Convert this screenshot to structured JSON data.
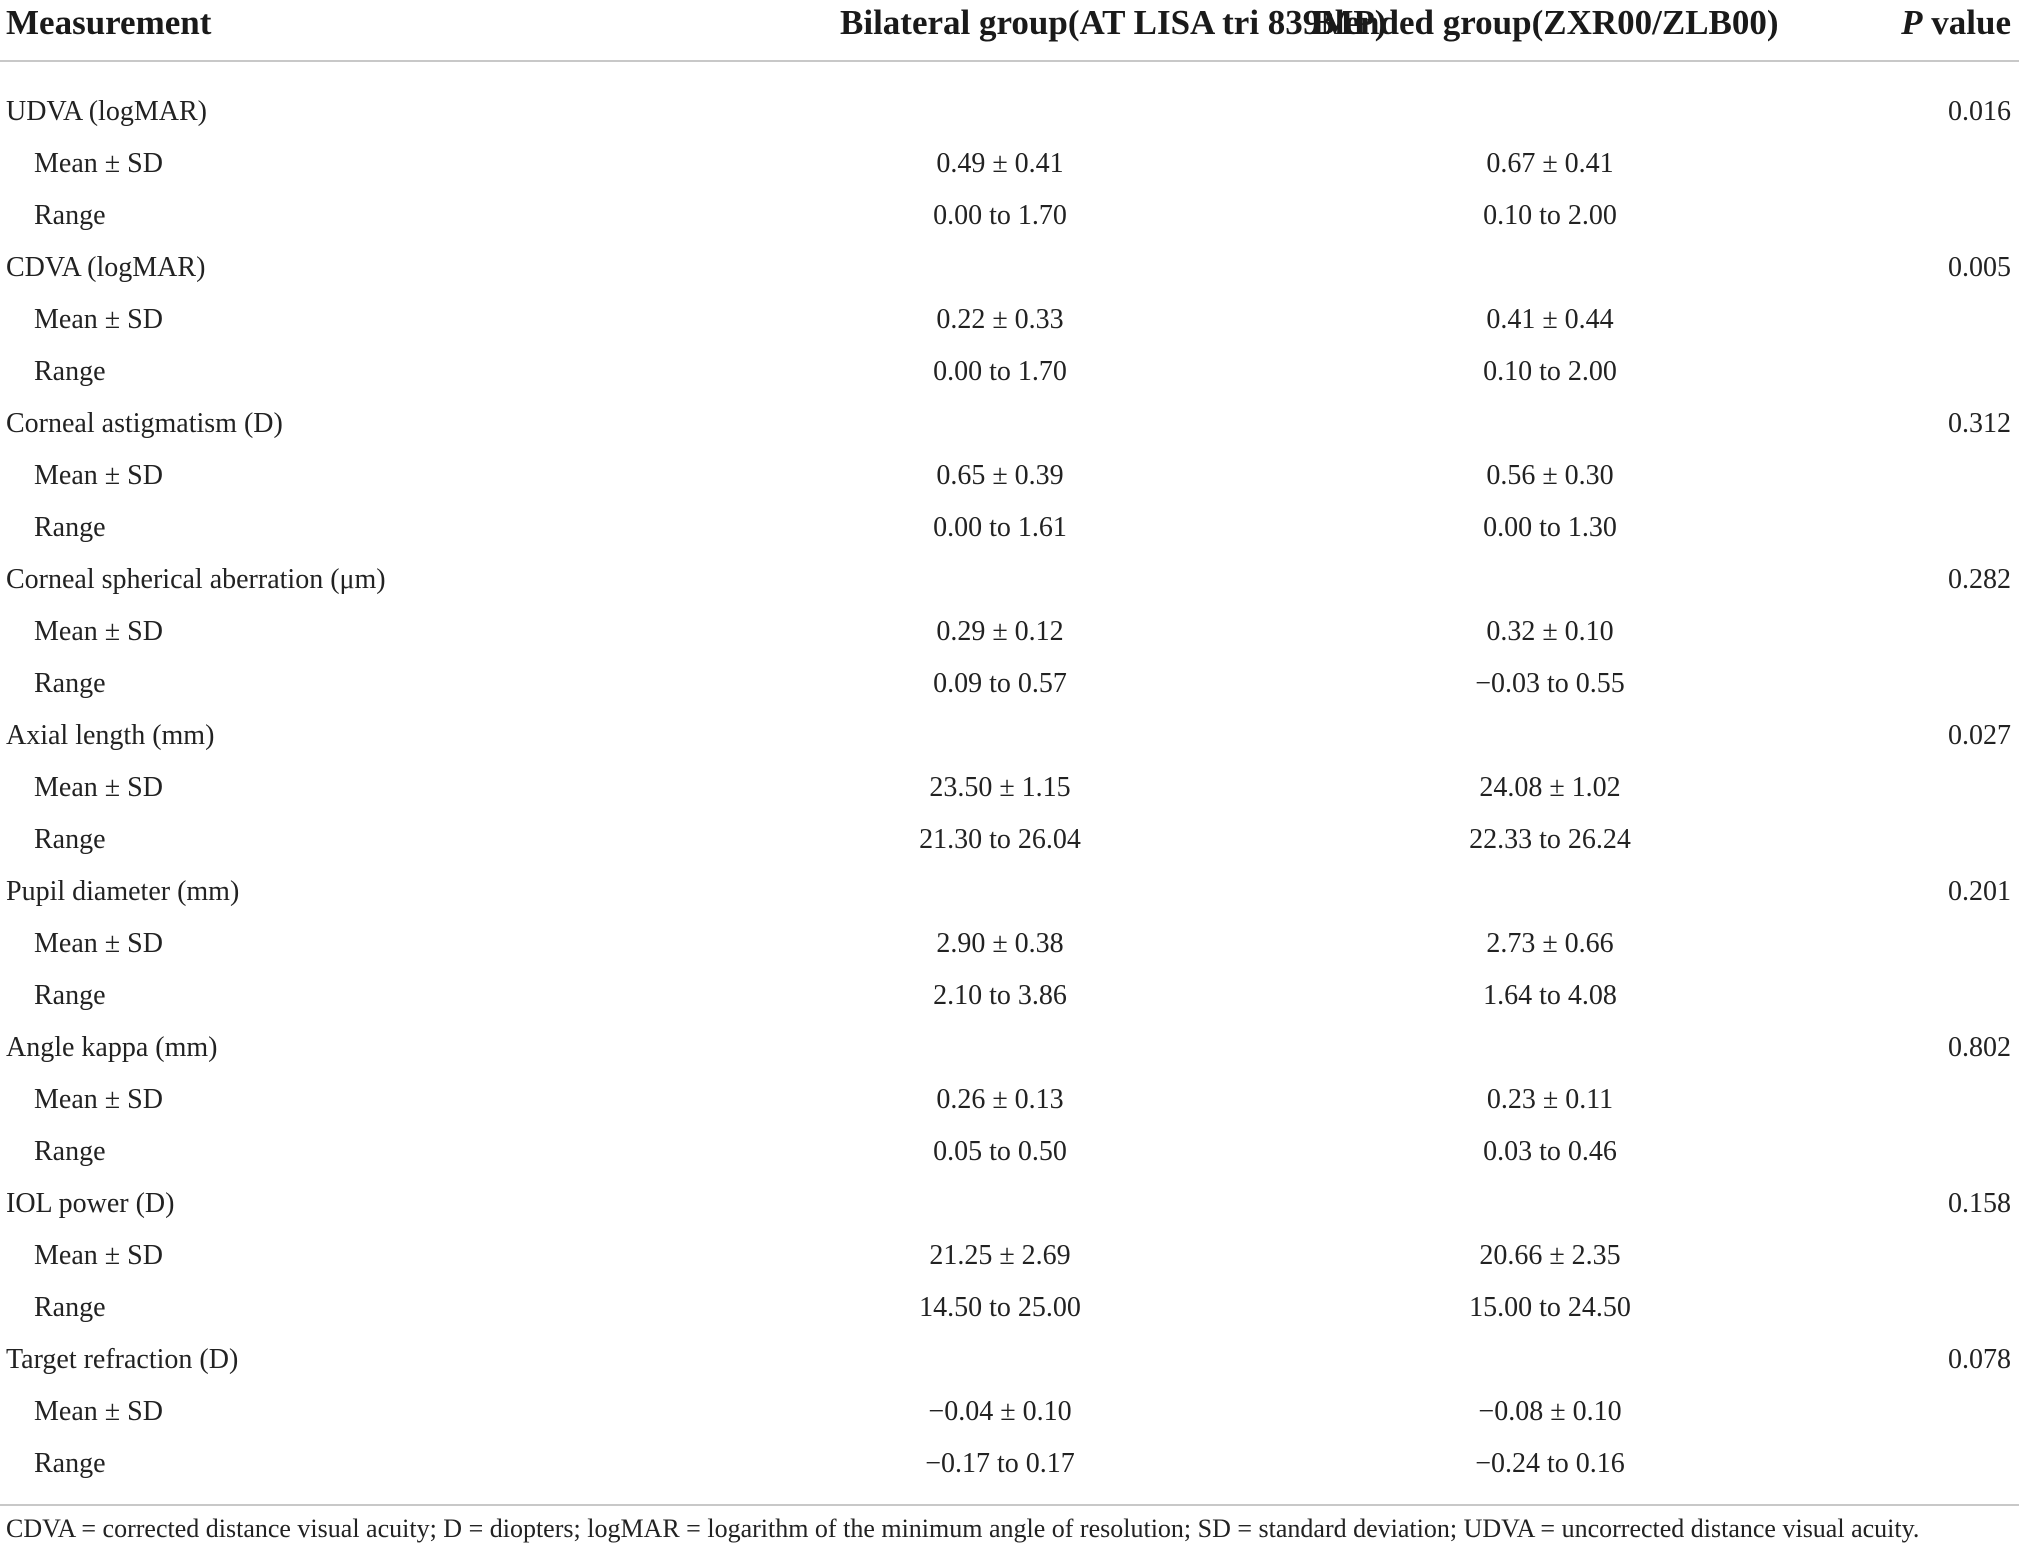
{
  "header": {
    "measurement": "Measurement",
    "bilateral": "Bilateral group(AT LISA tri 839MP)",
    "blended": "Blended group(ZXR00/ZLB00)",
    "p_italic": "P",
    "p_rest": " value"
  },
  "rows": [
    {
      "label": "UDVA (logMAR)",
      "bilateral": "",
      "blended": "",
      "p": "0.016"
    },
    {
      "label": "Mean ± SD",
      "bilateral": "0.49 ± 0.41",
      "blended": "0.67 ± 0.41",
      "p": ""
    },
    {
      "label": "Range",
      "bilateral": "0.00 to 1.70",
      "blended": "0.10 to 2.00",
      "p": ""
    },
    {
      "label": "CDVA (logMAR)",
      "bilateral": "",
      "blended": "",
      "p": "0.005"
    },
    {
      "label": "Mean ± SD",
      "bilateral": "0.22 ± 0.33",
      "blended": "0.41 ± 0.44",
      "p": ""
    },
    {
      "label": "Range",
      "bilateral": "0.00 to 1.70",
      "blended": "0.10 to 2.00",
      "p": ""
    },
    {
      "label": "Corneal astigmatism (D)",
      "bilateral": "",
      "blended": "",
      "p": "0.312"
    },
    {
      "label": "Mean ± SD",
      "bilateral": "0.65 ± 0.39",
      "blended": "0.56 ± 0.30",
      "p": ""
    },
    {
      "label": "Range",
      "bilateral": "0.00 to 1.61",
      "blended": "0.00 to 1.30",
      "p": ""
    },
    {
      "label": "Corneal spherical aberration (μm)",
      "bilateral": "",
      "blended": "",
      "p": "0.282"
    },
    {
      "label": "Mean ± SD",
      "bilateral": "0.29 ± 0.12",
      "blended": "0.32 ± 0.10",
      "p": ""
    },
    {
      "label": "Range",
      "bilateral": "0.09 to 0.57",
      "blended": "−0.03 to 0.55",
      "p": ""
    },
    {
      "label": "Axial length (mm)",
      "bilateral": "",
      "blended": "",
      "p": "0.027"
    },
    {
      "label": "Mean ± SD",
      "bilateral": "23.50 ± 1.15",
      "blended": "24.08 ± 1.02",
      "p": ""
    },
    {
      "label": "Range",
      "bilateral": "21.30 to 26.04",
      "blended": "22.33 to 26.24",
      "p": ""
    },
    {
      "label": "Pupil diameter (mm)",
      "bilateral": "",
      "blended": "",
      "p": "0.201"
    },
    {
      "label": "Mean ± SD",
      "bilateral": "2.90 ± 0.38",
      "blended": "2.73 ± 0.66",
      "p": ""
    },
    {
      "label": "Range",
      "bilateral": "2.10 to 3.86",
      "blended": "1.64 to 4.08",
      "p": ""
    },
    {
      "label": "Angle kappa (mm)",
      "bilateral": "",
      "blended": "",
      "p": "0.802"
    },
    {
      "label": "Mean ± SD",
      "bilateral": "0.26 ± 0.13",
      "blended": "0.23 ± 0.11",
      "p": ""
    },
    {
      "label": "Range",
      "bilateral": "0.05 to 0.50",
      "blended": "0.03 to 0.46",
      "p": ""
    },
    {
      "label": "IOL power (D)",
      "bilateral": "",
      "blended": "",
      "p": "0.158"
    },
    {
      "label": "Mean ± SD",
      "bilateral": "21.25 ± 2.69",
      "blended": "20.66 ± 2.35",
      "p": ""
    },
    {
      "label": "Range",
      "bilateral": "14.50 to 25.00",
      "blended": "15.00 to 24.50",
      "p": ""
    },
    {
      "label": "Target refraction (D)",
      "bilateral": "",
      "blended": "",
      "p": "0.078"
    },
    {
      "label": "Mean ± SD",
      "bilateral": "−0.04 ± 0.10",
      "blended": "−0.08 ± 0.10",
      "p": ""
    },
    {
      "label": "Range",
      "bilateral": "−0.17 to 0.17",
      "blended": "−0.24 to 0.16",
      "p": ""
    }
  ],
  "footnote": "CDVA = corrected distance visual acuity; D = diopters; logMAR = logarithm of the minimum angle of resolution; SD = standard deviation; UDVA = uncorrected distance visual acuity."
}
